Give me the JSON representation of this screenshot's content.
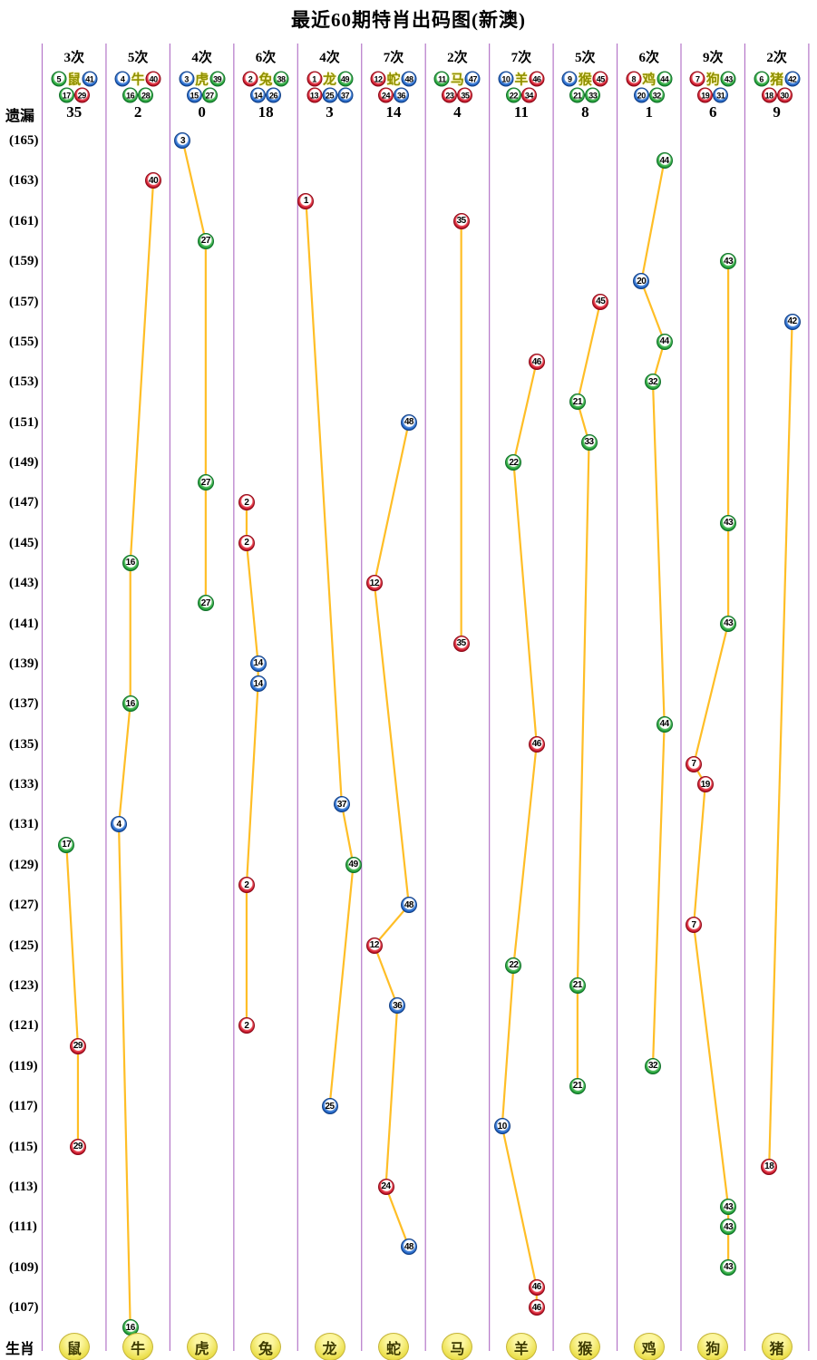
{
  "title": "最近60期特肖出码图(新澳)",
  "row_labels": {
    "missing": "遗漏",
    "zodiac": "生肖"
  },
  "colors": {
    "red_ball": "#c01327",
    "blue_ball": "#1b5fc0",
    "green_ball": "#1d9b33",
    "trend_line": "#ffbe26",
    "column_divider": "#b476c8",
    "zodiac_badge": "#ece04e",
    "zodiac_header_text": "#8f9000"
  },
  "number_colors": {
    "red": [
      1,
      2,
      7,
      8,
      12,
      13,
      18,
      19,
      23,
      24,
      29,
      30,
      34,
      35,
      40,
      45,
      46
    ],
    "blue": [
      3,
      4,
      9,
      10,
      14,
      15,
      20,
      25,
      26,
      31,
      36,
      37,
      41,
      42,
      47,
      48
    ],
    "green": [
      5,
      6,
      11,
      16,
      17,
      21,
      22,
      27,
      28,
      32,
      33,
      38,
      39,
      43,
      44,
      49
    ]
  },
  "chart_data": {
    "type": "scatter",
    "title": "最近60期特肖出码图(新澳)",
    "y_axis": {
      "top_period": 165,
      "bottom_period": 106,
      "tick_from": 165,
      "tick_to": 107,
      "tick_step": 2
    },
    "y_tick_labels": [
      "(165)",
      "(163)",
      "(161)",
      "(159)",
      "(157)",
      "(155)",
      "(153)",
      "(151)",
      "(149)",
      "(147)",
      "(145)",
      "(143)",
      "(141)",
      "(139)",
      "(137)",
      "(135)",
      "(133)",
      "(131)",
      "(129)",
      "(127)",
      "(125)",
      "(123)",
      "(121)",
      "(119)",
      "(117)",
      "(115)",
      "(113)",
      "(111)",
      "(109)",
      "(107)"
    ],
    "columns": [
      {
        "zodiac": "鼠",
        "count_label": "3次",
        "numbers": [
          5,
          17,
          29,
          41
        ],
        "missing": 35,
        "points": [
          {
            "period": 130,
            "value": 17
          },
          {
            "period": 120,
            "value": 29
          },
          {
            "period": 115,
            "value": 29
          }
        ]
      },
      {
        "zodiac": "牛",
        "count_label": "5次",
        "numbers": [
          4,
          16,
          28,
          40
        ],
        "missing": 2,
        "points": [
          {
            "period": 163,
            "value": 40
          },
          {
            "period": 144,
            "value": 16
          },
          {
            "period": 137,
            "value": 16
          },
          {
            "period": 131,
            "value": 4
          },
          {
            "period": 106,
            "value": 16
          }
        ]
      },
      {
        "zodiac": "虎",
        "count_label": "4次",
        "numbers": [
          3,
          15,
          27,
          39
        ],
        "missing": 0,
        "points": [
          {
            "period": 165,
            "value": 3
          },
          {
            "period": 160,
            "value": 27
          },
          {
            "period": 148,
            "value": 27
          },
          {
            "period": 142,
            "value": 27
          }
        ]
      },
      {
        "zodiac": "兔",
        "count_label": "6次",
        "numbers": [
          2,
          14,
          26,
          38
        ],
        "missing": 18,
        "points": [
          {
            "period": 147,
            "value": 2
          },
          {
            "period": 145,
            "value": 2
          },
          {
            "period": 139,
            "value": 14
          },
          {
            "period": 138,
            "value": 14
          },
          {
            "period": 128,
            "value": 2
          },
          {
            "period": 121,
            "value": 2
          }
        ]
      },
      {
        "zodiac": "龙",
        "count_label": "4次",
        "numbers": [
          1,
          13,
          25,
          37,
          49
        ],
        "missing": 3,
        "points": [
          {
            "period": 162,
            "value": 1
          },
          {
            "period": 132,
            "value": 37
          },
          {
            "period": 129,
            "value": 49
          },
          {
            "period": 117,
            "value": 25
          }
        ]
      },
      {
        "zodiac": "蛇",
        "count_label": "7次",
        "numbers": [
          12,
          24,
          36,
          48
        ],
        "missing": 14,
        "points": [
          {
            "period": 151,
            "value": 48
          },
          {
            "period": 143,
            "value": 12
          },
          {
            "period": 127,
            "value": 48
          },
          {
            "period": 125,
            "value": 12
          },
          {
            "period": 122,
            "value": 36
          },
          {
            "period": 113,
            "value": 24
          },
          {
            "period": 110,
            "value": 48
          }
        ]
      },
      {
        "zodiac": "马",
        "count_label": "2次",
        "numbers": [
          11,
          23,
          35,
          47
        ],
        "missing": 4,
        "points": [
          {
            "period": 161,
            "value": 35
          },
          {
            "period": 140,
            "value": 35
          }
        ]
      },
      {
        "zodiac": "羊",
        "count_label": "7次",
        "numbers": [
          10,
          22,
          34,
          46
        ],
        "missing": 11,
        "points": [
          {
            "period": 154,
            "value": 46
          },
          {
            "period": 149,
            "value": 22
          },
          {
            "period": 135,
            "value": 46
          },
          {
            "period": 124,
            "value": 22
          },
          {
            "period": 116,
            "value": 10
          },
          {
            "period": 108,
            "value": 46
          },
          {
            "period": 107,
            "value": 46
          }
        ]
      },
      {
        "zodiac": "猴",
        "count_label": "5次",
        "numbers": [
          9,
          21,
          33,
          45
        ],
        "missing": 8,
        "points": [
          {
            "period": 157,
            "value": 45
          },
          {
            "period": 152,
            "value": 21
          },
          {
            "period": 150,
            "value": 33
          },
          {
            "period": 123,
            "value": 21
          },
          {
            "period": 118,
            "value": 21
          }
        ]
      },
      {
        "zodiac": "鸡",
        "count_label": "6次",
        "numbers": [
          8,
          20,
          32,
          44
        ],
        "missing": 1,
        "points": [
          {
            "period": 164,
            "value": 44
          },
          {
            "period": 158,
            "value": 20
          },
          {
            "period": 155,
            "value": 44
          },
          {
            "period": 153,
            "value": 32
          },
          {
            "period": 136,
            "value": 44
          },
          {
            "period": 119,
            "value": 32
          }
        ]
      },
      {
        "zodiac": "狗",
        "count_label": "9次",
        "numbers": [
          7,
          19,
          31,
          43
        ],
        "missing": 6,
        "points": [
          {
            "period": 159,
            "value": 43
          },
          {
            "period": 146,
            "value": 43
          },
          {
            "period": 141,
            "value": 43
          },
          {
            "period": 134,
            "value": 7
          },
          {
            "period": 133,
            "value": 19
          },
          {
            "period": 126,
            "value": 7
          },
          {
            "period": 112,
            "value": 43
          },
          {
            "period": 111,
            "value": 43
          },
          {
            "period": 109,
            "value": 43
          }
        ]
      },
      {
        "zodiac": "猪",
        "count_label": "2次",
        "numbers": [
          6,
          18,
          30,
          42
        ],
        "missing": 9,
        "points": [
          {
            "period": 156,
            "value": 42
          },
          {
            "period": 114,
            "value": 18
          }
        ]
      }
    ]
  }
}
